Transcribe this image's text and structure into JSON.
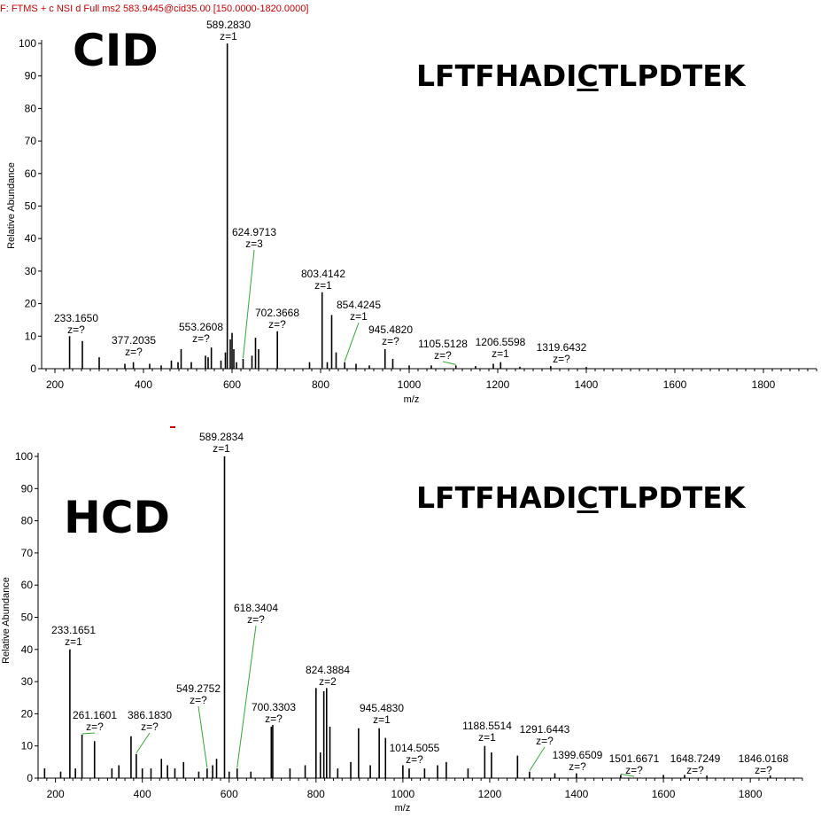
{
  "header_text": "F: FTMS + c NSI d Full ms2 583.9445@cid35.00 [150.0000-1820.0000]",
  "chart_data": [
    {
      "type": "bar",
      "title": "CID",
      "sequence_parts": [
        "LFTFHADI",
        "C",
        "TLPDTEK"
      ],
      "xlabel": "m/z",
      "ylabel": "Relative Abundance",
      "xlim": [
        170,
        1920
      ],
      "ylim": [
        0,
        100
      ],
      "xticks": [
        200,
        400,
        600,
        800,
        1000,
        1200,
        1400,
        1600,
        1800
      ],
      "yticks": [
        0,
        10,
        20,
        30,
        40,
        50,
        60,
        70,
        80,
        90,
        100
      ],
      "peaks": [
        {
          "mz": 233.165,
          "y": 10
        },
        {
          "mz": 262,
          "y": 8.5
        },
        {
          "mz": 300,
          "y": 3.5
        },
        {
          "mz": 358,
          "y": 1.5
        },
        {
          "mz": 377.2,
          "y": 2
        },
        {
          "mz": 414,
          "y": 1.5
        },
        {
          "mz": 440,
          "y": 1
        },
        {
          "mz": 463,
          "y": 2.5
        },
        {
          "mz": 478,
          "y": 2
        },
        {
          "mz": 485,
          "y": 6
        },
        {
          "mz": 508,
          "y": 2
        },
        {
          "mz": 540,
          "y": 4
        },
        {
          "mz": 546,
          "y": 3.5
        },
        {
          "mz": 553.26,
          "y": 6.5
        },
        {
          "mz": 575,
          "y": 2.5
        },
        {
          "mz": 585,
          "y": 5
        },
        {
          "mz": 589.283,
          "y": 100
        },
        {
          "mz": 596,
          "y": 9
        },
        {
          "mz": 600,
          "y": 11
        },
        {
          "mz": 604,
          "y": 6
        },
        {
          "mz": 610,
          "y": 2
        },
        {
          "mz": 624.97,
          "y": 3
        },
        {
          "mz": 645,
          "y": 4
        },
        {
          "mz": 653,
          "y": 9.5
        },
        {
          "mz": 660,
          "y": 6
        },
        {
          "mz": 702.367,
          "y": 11.5
        },
        {
          "mz": 775,
          "y": 2
        },
        {
          "mz": 803.414,
          "y": 23.5
        },
        {
          "mz": 815,
          "y": 2
        },
        {
          "mz": 825,
          "y": 16.5
        },
        {
          "mz": 835,
          "y": 5
        },
        {
          "mz": 854.4,
          "y": 2
        },
        {
          "mz": 880,
          "y": 1.5
        },
        {
          "mz": 910,
          "y": 1
        },
        {
          "mz": 945.482,
          "y": 6
        },
        {
          "mz": 963,
          "y": 3
        },
        {
          "mz": 1000,
          "y": 1
        },
        {
          "mz": 1050,
          "y": 1
        },
        {
          "mz": 1105.5,
          "y": 1
        },
        {
          "mz": 1150,
          "y": 0.8
        },
        {
          "mz": 1190,
          "y": 1.5
        },
        {
          "mz": 1206.56,
          "y": 2
        },
        {
          "mz": 1250,
          "y": 0.6
        },
        {
          "mz": 1319.64,
          "y": 0.8
        },
        {
          "mz": 1400,
          "y": 0.5
        }
      ],
      "annotations": [
        {
          "label": "589.2830",
          "z": "z=1",
          "mz": 589.283,
          "y": 100
        },
        {
          "label": "624.9713",
          "z": "z=3",
          "mz": 624.97,
          "y": 3
        },
        {
          "label": "803.4142",
          "z": "z=1",
          "mz": 803.414,
          "y": 23.5
        },
        {
          "label": "854.4245",
          "z": "z=1",
          "mz": 854.4,
          "y": 2
        },
        {
          "label": "702.3668",
          "z": "z=?",
          "mz": 702.367,
          "y": 11.5
        },
        {
          "label": "233.1650",
          "z": "z=?",
          "mz": 233.165,
          "y": 10
        },
        {
          "label": "553.2608",
          "z": "z=?",
          "mz": 553.26,
          "y": 6.5
        },
        {
          "label": "945.4820",
          "z": "z=?",
          "mz": 945.482,
          "y": 6
        },
        {
          "label": "377.2035",
          "z": "z=?",
          "mz": 377.2,
          "y": 2
        },
        {
          "label": "1105.5128",
          "z": "z=?",
          "mz": 1105.5,
          "y": 1
        },
        {
          "label": "1206.5598",
          "z": "z=1",
          "mz": 1206.56,
          "y": 2
        },
        {
          "label": "1319.6432",
          "z": "z=?",
          "mz": 1319.64,
          "y": 0.8
        }
      ]
    },
    {
      "type": "bar",
      "title": "HCD",
      "sequence_parts": [
        "LFTFHADI",
        "C",
        "TLPDTEK"
      ],
      "xlabel": "m/z",
      "ylabel": "Relative Abundance",
      "xlim": [
        160,
        1920
      ],
      "ylim": [
        0,
        100
      ],
      "xticks": [
        200,
        400,
        600,
        800,
        1000,
        1200,
        1400,
        1600,
        1800
      ],
      "yticks": [
        0,
        10,
        20,
        30,
        40,
        50,
        60,
        70,
        80,
        90,
        100
      ],
      "peaks": [
        {
          "mz": 175,
          "y": 3
        },
        {
          "mz": 212,
          "y": 2
        },
        {
          "mz": 233.165,
          "y": 40
        },
        {
          "mz": 246,
          "y": 3
        },
        {
          "mz": 261.16,
          "y": 13.5
        },
        {
          "mz": 290,
          "y": 11.5
        },
        {
          "mz": 330,
          "y": 3
        },
        {
          "mz": 346,
          "y": 4
        },
        {
          "mz": 374,
          "y": 13
        },
        {
          "mz": 386.18,
          "y": 7.5
        },
        {
          "mz": 400,
          "y": 3
        },
        {
          "mz": 420,
          "y": 3
        },
        {
          "mz": 444,
          "y": 6
        },
        {
          "mz": 458,
          "y": 4
        },
        {
          "mz": 475,
          "y": 3
        },
        {
          "mz": 495,
          "y": 5
        },
        {
          "mz": 530,
          "y": 2
        },
        {
          "mz": 549.275,
          "y": 3
        },
        {
          "mz": 562,
          "y": 4
        },
        {
          "mz": 571,
          "y": 6
        },
        {
          "mz": 589.283,
          "y": 100
        },
        {
          "mz": 600,
          "y": 2
        },
        {
          "mz": 618.34,
          "y": 3
        },
        {
          "mz": 650,
          "y": 2
        },
        {
          "mz": 697,
          "y": 16
        },
        {
          "mz": 700.33,
          "y": 16.5
        },
        {
          "mz": 740,
          "y": 3
        },
        {
          "mz": 775,
          "y": 4
        },
        {
          "mz": 800,
          "y": 28
        },
        {
          "mz": 810,
          "y": 8
        },
        {
          "mz": 818,
          "y": 27
        },
        {
          "mz": 824.388,
          "y": 28
        },
        {
          "mz": 832,
          "y": 16
        },
        {
          "mz": 850,
          "y": 3
        },
        {
          "mz": 880,
          "y": 5
        },
        {
          "mz": 898,
          "y": 15.5
        },
        {
          "mz": 925,
          "y": 4
        },
        {
          "mz": 945.483,
          "y": 15.5
        },
        {
          "mz": 960,
          "y": 12.5
        },
        {
          "mz": 1000,
          "y": 4
        },
        {
          "mz": 1014.5,
          "y": 3
        },
        {
          "mz": 1050,
          "y": 3
        },
        {
          "mz": 1080,
          "y": 4
        },
        {
          "mz": 1100,
          "y": 5
        },
        {
          "mz": 1150,
          "y": 3
        },
        {
          "mz": 1188.55,
          "y": 10
        },
        {
          "mz": 1204,
          "y": 8
        },
        {
          "mz": 1264,
          "y": 7
        },
        {
          "mz": 1291.64,
          "y": 2
        },
        {
          "mz": 1350,
          "y": 1.5
        },
        {
          "mz": 1399.65,
          "y": 1.5
        },
        {
          "mz": 1501.67,
          "y": 1
        },
        {
          "mz": 1600,
          "y": 1
        },
        {
          "mz": 1648.72,
          "y": 1
        },
        {
          "mz": 1700,
          "y": 0.8
        },
        {
          "mz": 1846.02,
          "y": 0.8
        }
      ],
      "annotations": [
        {
          "label": "589.2834",
          "z": "z=1",
          "mz": 589.283,
          "y": 100
        },
        {
          "label": "618.3404",
          "z": "z=?",
          "mz": 618.34,
          "y": 3
        },
        {
          "label": "233.1651",
          "z": "z=1",
          "mz": 233.165,
          "y": 40
        },
        {
          "label": "824.3884",
          "z": "z=2",
          "mz": 824.388,
          "y": 28
        },
        {
          "label": "549.2752",
          "z": "z=?",
          "mz": 549.275,
          "y": 3
        },
        {
          "label": "700.3303",
          "z": "z=?",
          "mz": 700.33,
          "y": 16.5
        },
        {
          "label": "945.4830",
          "z": "z=1",
          "mz": 945.483,
          "y": 15.5
        },
        {
          "label": "261.1601",
          "z": "z=?",
          "mz": 261.16,
          "y": 13.5
        },
        {
          "label": "386.1830",
          "z": "z=?",
          "mz": 386.18,
          "y": 7.5
        },
        {
          "label": "1188.5514",
          "z": "z=1",
          "mz": 1188.55,
          "y": 10
        },
        {
          "label": "1291.6443",
          "z": "z=?",
          "mz": 1291.64,
          "y": 2
        },
        {
          "label": "1014.5055",
          "z": "z=?",
          "mz": 1014.5,
          "y": 3
        },
        {
          "label": "1399.6509",
          "z": "z=?",
          "mz": 1399.65,
          "y": 1.5
        },
        {
          "label": "1501.6671",
          "z": "z=?",
          "mz": 1501.67,
          "y": 1
        },
        {
          "label": "1648.7249",
          "z": "z=?",
          "mz": 1648.72,
          "y": 1
        },
        {
          "label": "1846.0168",
          "z": "z=?",
          "mz": 1846.02,
          "y": 0.8
        }
      ]
    }
  ]
}
